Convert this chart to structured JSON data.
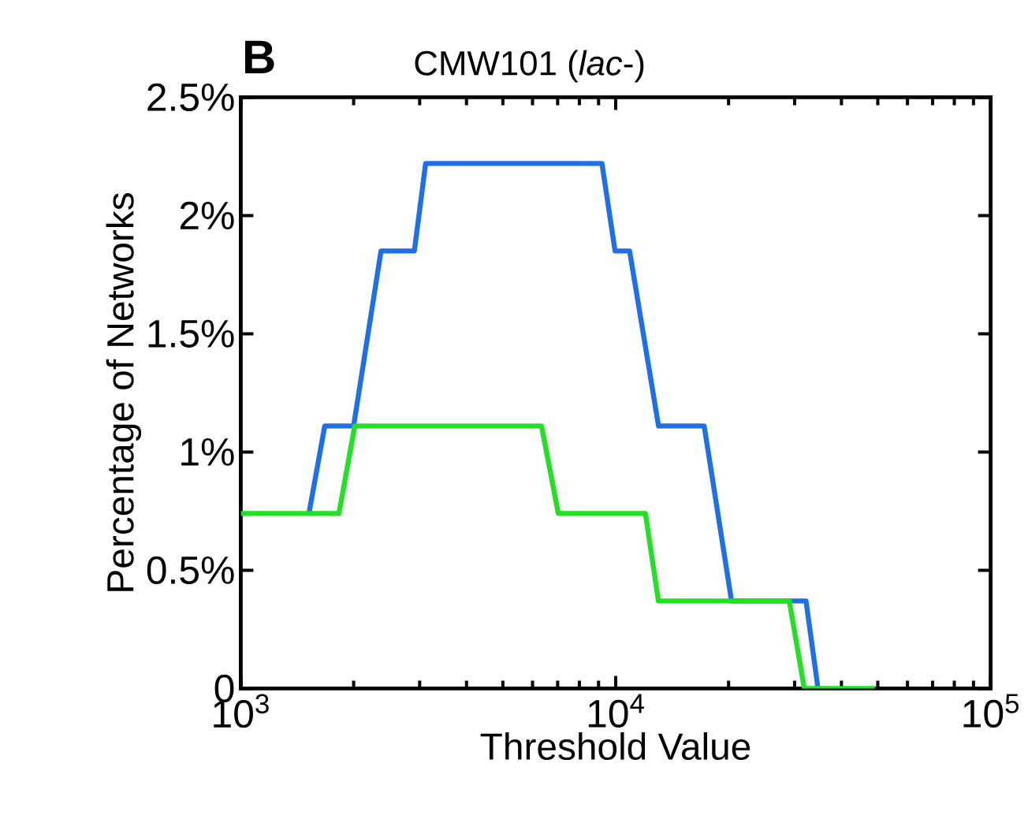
{
  "chart_data": {
    "type": "line",
    "title": "CMW101 (*lac*-)",
    "xlabel": "Threshold Value",
    "ylabel": "Percentage of Networks",
    "annotations": [
      "B"
    ],
    "log": "x",
    "line_style": "solid",
    "marker": "none",
    "xlim": [
      1000,
      100000
    ],
    "xticks": [
      {
        "value": 1000,
        "label": "10$^{3}$"
      },
      {
        "value": 10000,
        "label": "10$^{4}$"
      },
      {
        "value": 100000,
        "label": "10$^{5}$"
      }
    ],
    "ylim": [
      0,
      2.5
    ],
    "yticks": [
      {
        "value": 0,
        "label": "0"
      },
      {
        "value": 0.5,
        "label": "0.5%"
      },
      {
        "value": 1,
        "label": "1%"
      },
      {
        "value": 1.5,
        "label": "1.5%"
      },
      {
        "value": 2,
        "label": "2%"
      },
      {
        "value": 2.5,
        "label": "2.5%"
      }
    ],
    "series": [
      {
        "color": "#1f6fe8",
        "x": [
          1520,
          1675,
          2000,
          2366,
          2904,
          3112,
          9190,
          9960,
          10890,
          13010,
          17220,
          20370,
          32180,
          34640
        ],
        "values": [
          0.74,
          1.11,
          1.11,
          1.85,
          1.85,
          2.22,
          2.22,
          1.85,
          1.85,
          1.11,
          1.11,
          0.37,
          0.37,
          0
        ]
      },
      {
        "color": "#22e022",
        "x": [
          1000,
          1828,
          2013,
          6340,
          7030,
          12000,
          13000,
          29040,
          31840,
          49200
        ],
        "values": [
          0.74,
          0.74,
          1.11,
          1.11,
          0.74,
          0.74,
          0.37,
          0.37,
          0,
          0
        ]
      }
    ]
  }
}
